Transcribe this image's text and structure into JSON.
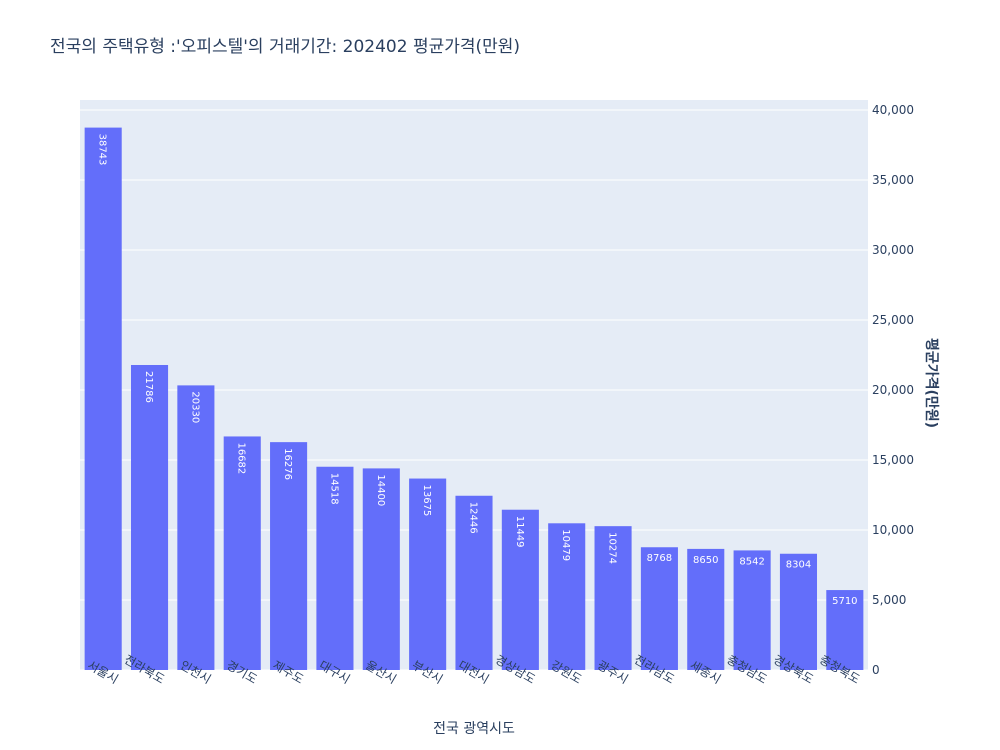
{
  "chart_data": {
    "type": "bar",
    "title": "전국의 주택유형 :'오피스텔'의 거래기간: 202402 평균가격(만원)",
    "xlabel": "전국 광역시도",
    "ylabel": "평균가격(만원)",
    "ylim": [
      0,
      40000
    ],
    "yticks": [
      0,
      5000,
      10000,
      15000,
      20000,
      25000,
      30000,
      35000,
      40000
    ],
    "ytick_labels": [
      "0",
      "5,000",
      "10,000",
      "15,000",
      "20,000",
      "25,000",
      "30,000",
      "35,000",
      "40,000"
    ],
    "y_axis_side": "right",
    "categories": [
      "서울시",
      "전라북도",
      "인천시",
      "경기도",
      "제주도",
      "대구시",
      "울산시",
      "부산시",
      "대전시",
      "경상남도",
      "강원도",
      "광주시",
      "전라남도",
      "세종시",
      "충청남도",
      "경상북도",
      "충청북도"
    ],
    "values": [
      38743,
      21786,
      20330,
      16682,
      16276,
      14518,
      14400,
      13675,
      12446,
      11449,
      10479,
      10274,
      8768,
      8650,
      8542,
      8304,
      5710
    ],
    "bar_color": "#636efa",
    "plot_bg": "#e5ecf6",
    "grid_color": "#ffffff"
  }
}
